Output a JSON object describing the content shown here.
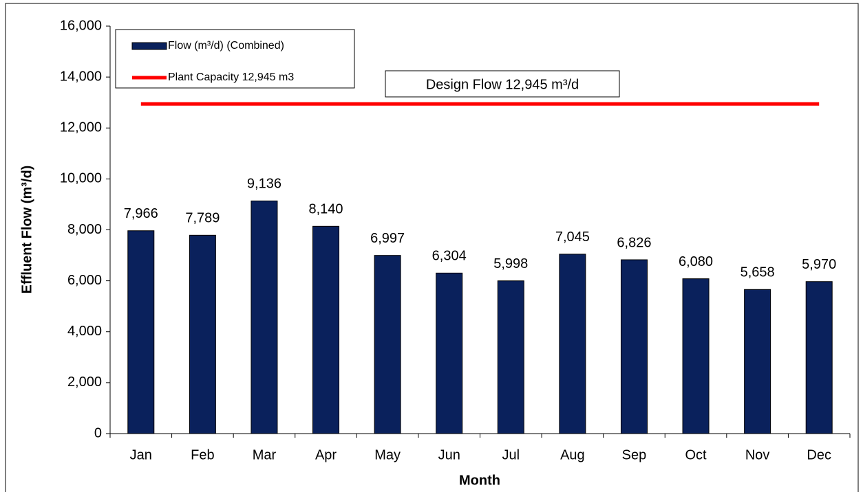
{
  "chart_data": {
    "type": "bar",
    "xlabel": "Month",
    "ylabel": "Effluent Flow (m³/d)",
    "annotation": "Design Flow 12,945 m³/d",
    "categories": [
      "Jan",
      "Feb",
      "Mar",
      "Apr",
      "May",
      "Jun",
      "Jul",
      "Aug",
      "Sep",
      "Oct",
      "Nov",
      "Dec"
    ],
    "series": [
      {
        "name": "Flow (m³/d) (Combined)",
        "type": "bar",
        "color": "#0a215c",
        "values": [
          7966,
          7789,
          9136,
          8140,
          6997,
          6304,
          5998,
          7045,
          6826,
          6080,
          5658,
          5970
        ],
        "value_labels": [
          "7,966",
          "7,789",
          "9,136",
          "8,140",
          "6,997",
          "6,304",
          "5,998",
          "7,045",
          "6,826",
          "6,080",
          "5,658",
          "5,970"
        ]
      },
      {
        "name": "Plant Capacity 12,945 m3",
        "type": "line",
        "color": "#ff0000",
        "values": [
          12945,
          12945,
          12945,
          12945,
          12945,
          12945,
          12945,
          12945,
          12945,
          12945,
          12945,
          12945
        ]
      }
    ],
    "ylim": [
      0,
      16000
    ],
    "yticks": [
      0,
      {
        "value": 2000,
        "label": "2,000"
      },
      {
        "value": 4000,
        "label": "4,000"
      },
      {
        "value": 6000,
        "label": "6,000"
      },
      {
        "value": 8000,
        "label": "8,000"
      },
      {
        "value": 10000,
        "label": "10,000"
      },
      {
        "value": 12000,
        "label": "12,000"
      },
      {
        "value": 14000,
        "label": "14,000"
      },
      {
        "value": 16000,
        "label": "16,000"
      }
    ],
    "grid": false,
    "legend": "upper left"
  }
}
